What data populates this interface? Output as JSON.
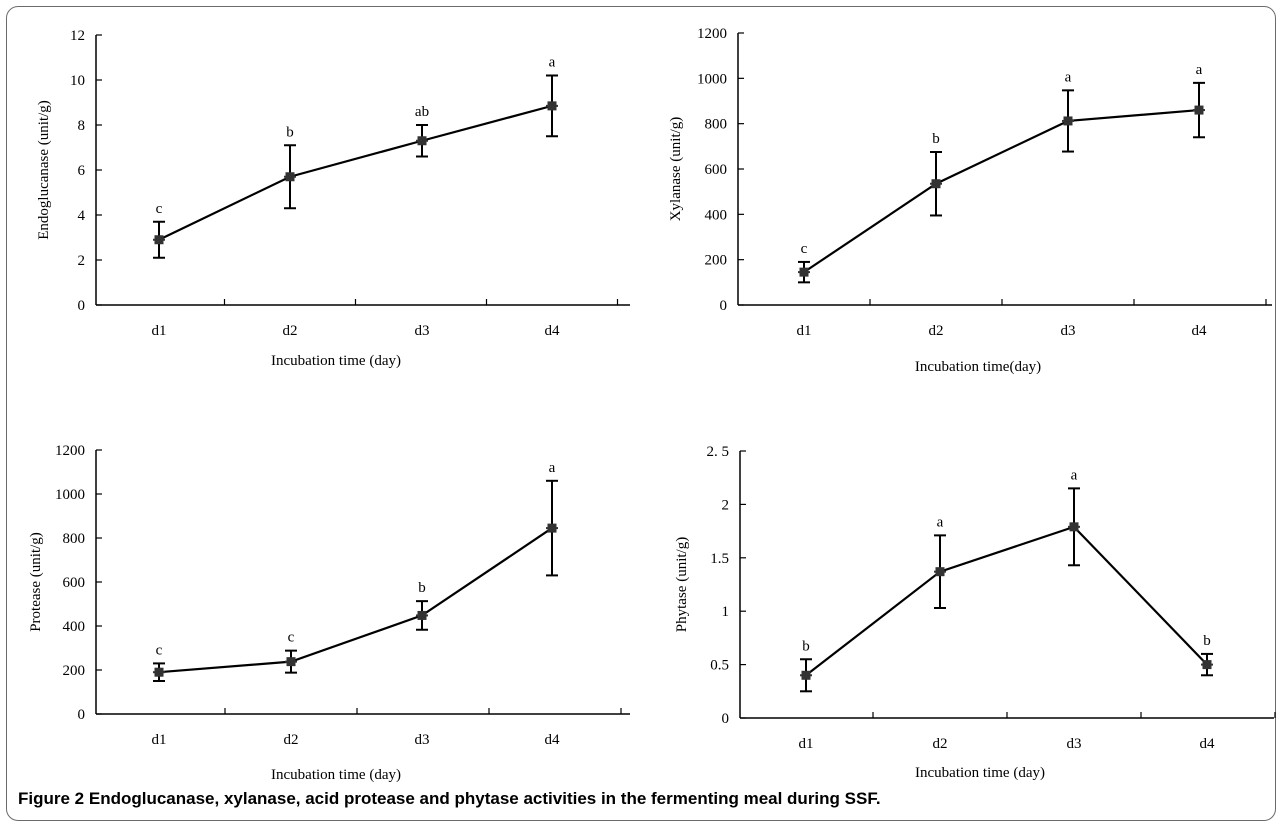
{
  "caption": {
    "label": "Figure 2",
    "text": "Endoglucanase, xylanase, acid protease and phytase activities in the fermenting meal during SSF."
  },
  "colors": {
    "line": "#000000",
    "marker": "#333333",
    "frame": "#6b6b6b"
  },
  "chart_data": [
    {
      "type": "line",
      "title": "",
      "xlabel": "Incubation time (day)",
      "ylabel": "Endoglucanase (unit/g)",
      "categories": [
        "d1",
        "d2",
        "d3",
        "d4"
      ],
      "ylim": [
        0,
        12
      ],
      "yticks": [
        0,
        2,
        4,
        6,
        8,
        10,
        12
      ],
      "ytick_labels": [
        "0",
        "2",
        "4",
        "6",
        "8",
        "10",
        "12"
      ],
      "series": [
        {
          "values": [
            2.9,
            5.7,
            7.3,
            8.85
          ],
          "errors": [
            0.8,
            1.4,
            0.7,
            1.35
          ],
          "letters": [
            "c",
            "b",
            "ab",
            "a"
          ]
        }
      ],
      "grid": false,
      "legend": "none"
    },
    {
      "type": "line",
      "title": "",
      "xlabel": "Incubation time(day)",
      "ylabel": "Xylanase (unit/g)",
      "categories": [
        "d1",
        "d2",
        "d3",
        "d4"
      ],
      "ylim": [
        0,
        1200
      ],
      "yticks": [
        0,
        200,
        400,
        600,
        800,
        1000,
        1200
      ],
      "ytick_labels": [
        "0",
        "200",
        "400",
        "600",
        "800",
        "1000",
        "1200"
      ],
      "series": [
        {
          "values": [
            145,
            535,
            812,
            860
          ],
          "errors": [
            45,
            140,
            135,
            120
          ],
          "letters": [
            "c",
            "b",
            "a",
            "a"
          ]
        }
      ],
      "grid": false,
      "legend": "none"
    },
    {
      "type": "line",
      "title": "",
      "xlabel": "Incubation time (day)",
      "ylabel": "Protease (unit/g)",
      "categories": [
        "d1",
        "d2",
        "d3",
        "d4"
      ],
      "ylim": [
        0,
        1200
      ],
      "yticks": [
        0,
        200,
        400,
        600,
        800,
        1000,
        1200
      ],
      "ytick_labels": [
        "0",
        "200",
        "400",
        "600",
        "800",
        "1000",
        "1200"
      ],
      "series": [
        {
          "values": [
            190,
            238,
            448,
            845
          ],
          "errors": [
            40,
            50,
            65,
            215
          ],
          "letters": [
            "c",
            "c",
            "b",
            "a"
          ]
        }
      ],
      "grid": false,
      "legend": "none"
    },
    {
      "type": "line",
      "title": "",
      "xlabel": "Incubation time (day)",
      "ylabel": "Phytase (unit/g)",
      "categories": [
        "d1",
        "d2",
        "d3",
        "d4"
      ],
      "ylim": [
        0,
        2.5
      ],
      "yticks": [
        0,
        0.5,
        1,
        1.5,
        2,
        2.5
      ],
      "ytick_labels": [
        "0",
        "0.5",
        "1",
        "1.5",
        "2",
        "2. 5"
      ],
      "series": [
        {
          "values": [
            0.4,
            1.37,
            1.79,
            0.5
          ],
          "errors": [
            0.15,
            0.34,
            0.36,
            0.1
          ],
          "letters": [
            "b",
            "a",
            "a",
            "b"
          ]
        }
      ],
      "grid": false,
      "legend": "none"
    }
  ]
}
